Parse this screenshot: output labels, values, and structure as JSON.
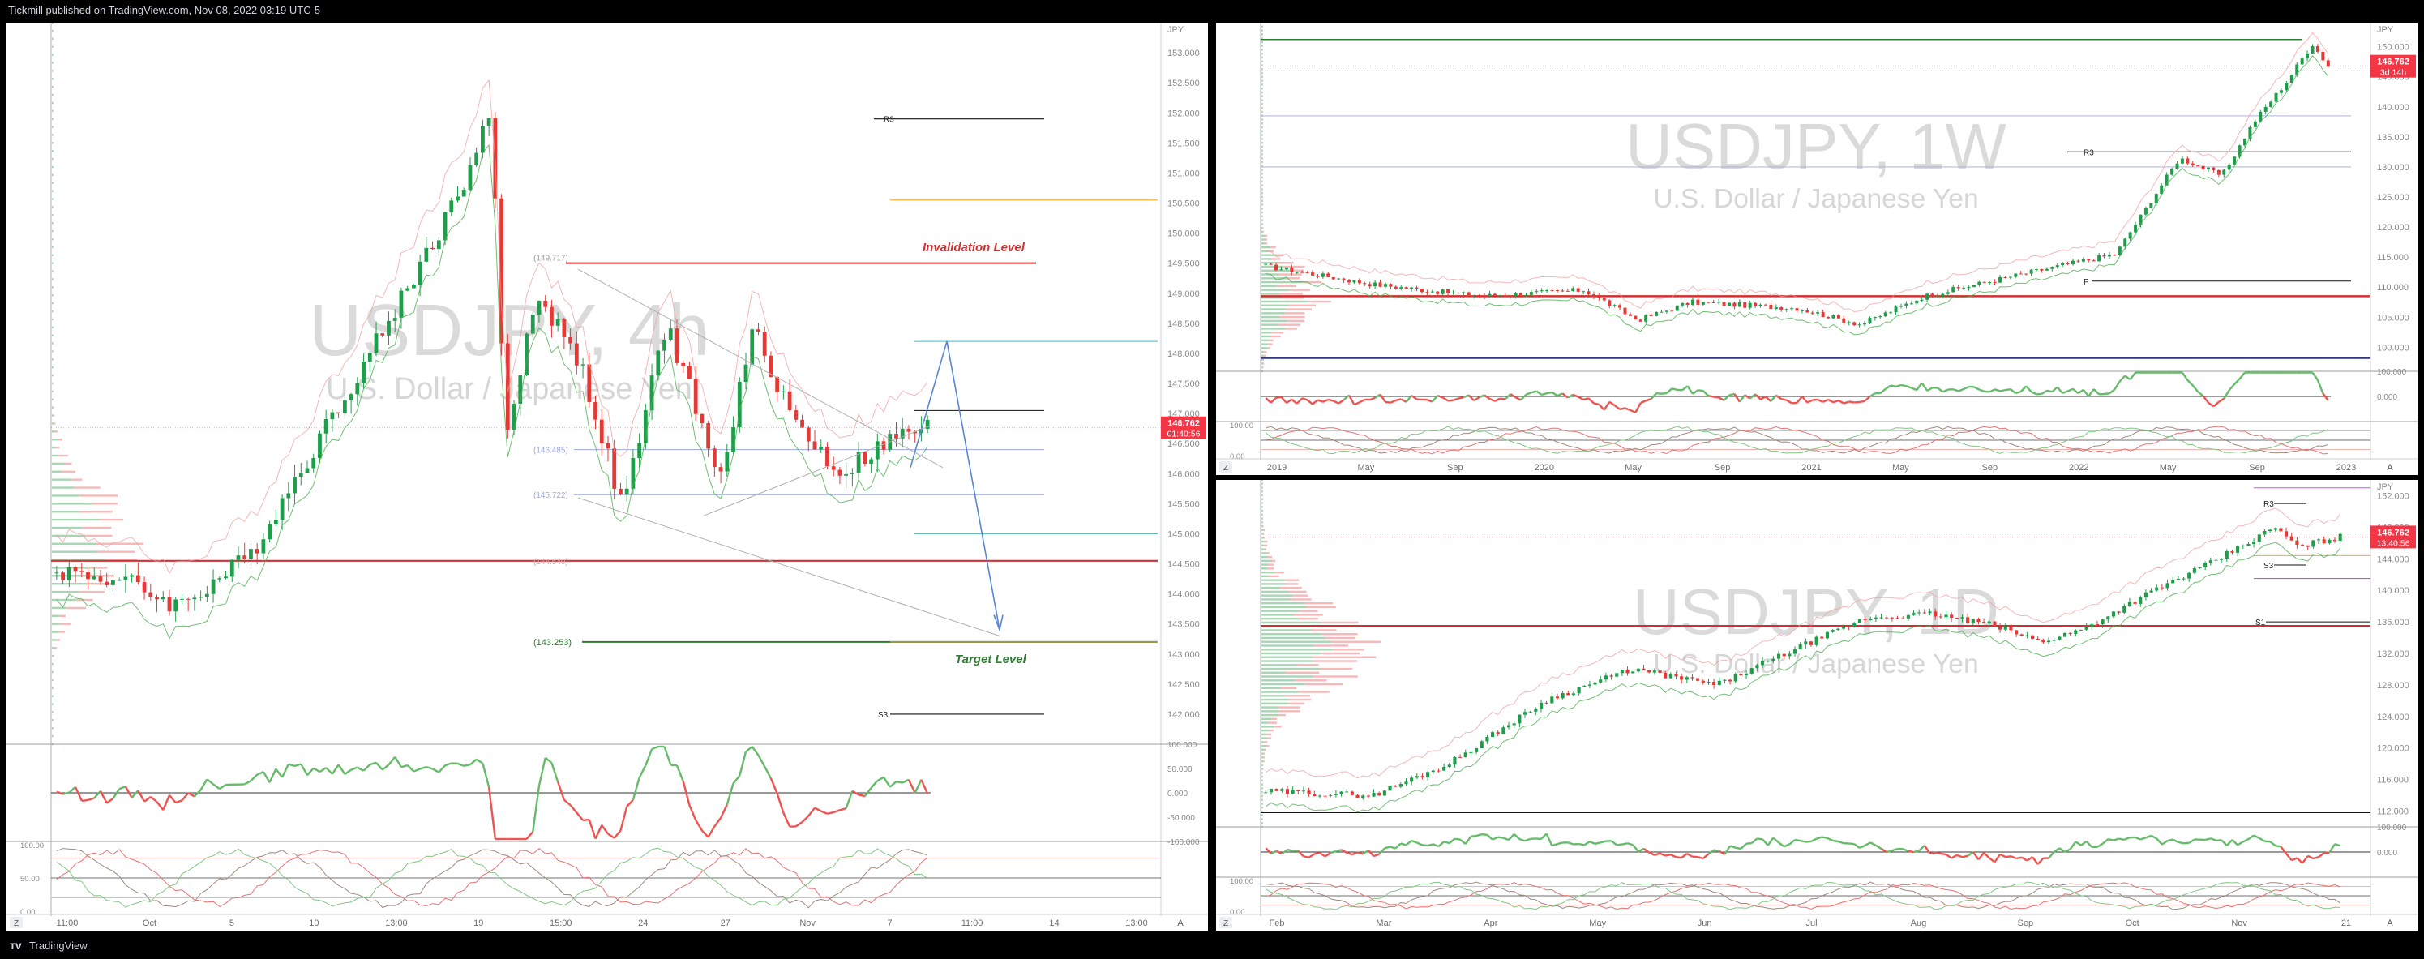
{
  "header": {
    "publisher": "Tickmill published on TradingView.com, Nov 08, 2022 03:19 UTC-5"
  },
  "footer": {
    "brand": "TradingView"
  },
  "colors": {
    "up": "#1e9e4a",
    "down": "#e53935",
    "price_tag": "#f23645",
    "green_line": "#2e7d32",
    "red_line": "#d32f2f",
    "navy_line": "#283593",
    "orange_line": "#f9a825",
    "teal_line": "#26c6da",
    "blue_arrow": "#5a86d6"
  },
  "chart_data": [
    {
      "id": "left",
      "type": "candlestick",
      "watermark_symbol": "USDJPY, 4h",
      "watermark_name": "U.S. Dollar / Japanese Yen",
      "currency": "JPY",
      "price_tag": "146.762",
      "countdown": "01:40:56",
      "y_ticks": [
        "153.000",
        "152.500",
        "152.000",
        "151.500",
        "151.000",
        "150.500",
        "150.000",
        "149.500",
        "149.000",
        "148.500",
        "148.000",
        "147.500",
        "147.000",
        "146.500",
        "146.000",
        "145.500",
        "145.000",
        "144.500",
        "144.000",
        "143.500",
        "143.000",
        "142.500",
        "142.000"
      ],
      "ylim": [
        141.5,
        153.5
      ],
      "x_ticks": [
        "11:00",
        "Oct",
        "5",
        "10",
        "13:00",
        "19",
        "15:00",
        "24",
        "27",
        "Nov",
        "7",
        "11:00",
        "14",
        "13:00"
      ],
      "levels": [
        {
          "label": "R3",
          "price": 151.9
        },
        {
          "label": "Invalidation Level",
          "price": 149.5
        },
        {
          "label": "(149.717)",
          "price": 149.6
        },
        {
          "label": "(146.485)",
          "price": 146.4
        },
        {
          "label": "(145.722)",
          "price": 145.65
        },
        {
          "label": "(144.540)",
          "price": 144.55
        },
        {
          "label": "(143.253)",
          "price": 143.2
        },
        {
          "label": "Target Level",
          "price": 143.0
        },
        {
          "label": "S3",
          "price": 142.0
        }
      ],
      "osc_ticks": [
        "100.000",
        "50.000",
        "0.000",
        "-50.000",
        "-100.000"
      ],
      "stoch_ticks": [
        "100.00",
        "50.00",
        "0.00"
      ],
      "corner_label": "A",
      "z_label": "Z"
    },
    {
      "id": "top-right",
      "type": "candlestick",
      "watermark_symbol": "USDJPY, 1W",
      "watermark_name": "U.S. Dollar / Japanese Yen",
      "currency": "JPY",
      "price_tag": "146.762",
      "countdown": "3d 14h",
      "y_ticks": [
        "150.000",
        "145.000",
        "140.000",
        "135.000",
        "130.000",
        "125.000",
        "120.000",
        "115.000",
        "110.000",
        "105.000",
        "100.000"
      ],
      "ylim": [
        96,
        154
      ],
      "x_ticks": [
        "2019",
        "May",
        "Sep",
        "2020",
        "May",
        "Sep",
        "2021",
        "May",
        "Sep",
        "2022",
        "May",
        "Sep",
        "2023"
      ],
      "levels": [
        {
          "label": "R3",
          "price": 132.5
        },
        {
          "label": "P",
          "price": 111
        }
      ],
      "osc_ticks": [
        "100.000",
        "0.000"
      ],
      "stoch_ticks": [
        "100.00",
        "0.00"
      ],
      "corner_label": "A",
      "z_label": "Z"
    },
    {
      "id": "bottom-right",
      "type": "candlestick",
      "watermark_symbol": "USDJPY, 1D",
      "watermark_name": "U.S. Dollar / Japanese Yen",
      "currency": "JPY",
      "price_tag": "146.762",
      "countdown": "13:40:56",
      "y_ticks": [
        "152.000",
        "148.000",
        "144.000",
        "140.000",
        "136.000",
        "132.000",
        "128.000",
        "124.000",
        "120.000",
        "116.000",
        "112.000"
      ],
      "ylim": [
        110,
        154
      ],
      "x_ticks": [
        "Feb",
        "Mar",
        "Apr",
        "May",
        "Jun",
        "Jul",
        "Aug",
        "Sep",
        "Oct",
        "Nov",
        "21"
      ],
      "levels": [
        {
          "label": "R3",
          "price": 151
        },
        {
          "label": "S3",
          "price": 143.2
        },
        {
          "label": "S1",
          "price": 136
        }
      ],
      "osc_ticks": [
        "100.000",
        "0.000"
      ],
      "stoch_ticks": [
        "100.00",
        "0.00"
      ],
      "corner_label": "A",
      "z_label": "Z"
    }
  ]
}
